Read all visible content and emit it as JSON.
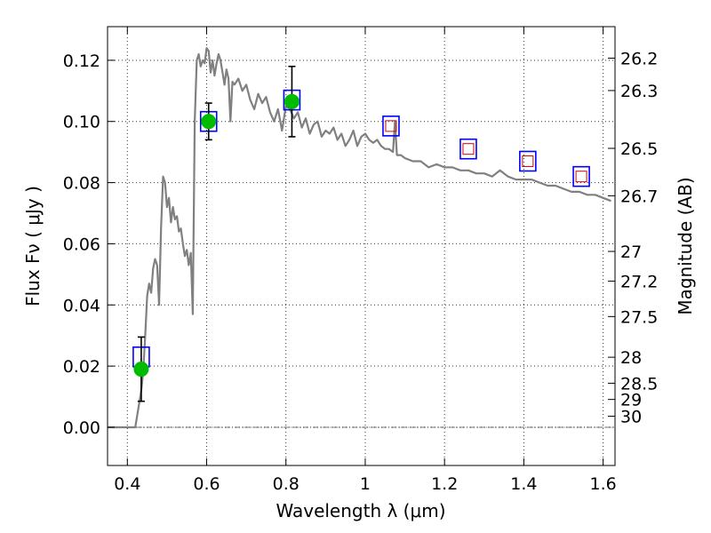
{
  "chart_data": {
    "type": "line",
    "xlabel": "Wavelength  λ (μm)",
    "ylabel": "Flux  Fν  ( μJy )",
    "y2label": "Magnitude (AB)",
    "xlim": [
      0.35,
      1.63
    ],
    "ylim": [
      -0.0125,
      0.131
    ],
    "x_ticks": [
      0.4,
      0.6,
      0.8,
      1.0,
      1.2,
      1.4,
      1.6
    ],
    "x_tick_labels": [
      "0.4",
      "0.6",
      "0.8",
      "1",
      "1.2",
      "1.4",
      "1.6"
    ],
    "y_ticks": [
      0.0,
      0.02,
      0.04,
      0.06,
      0.08,
      0.1,
      0.12
    ],
    "y_tick_labels": [
      "0.00",
      "0.02",
      "0.04",
      "0.06",
      "0.08",
      "0.10",
      "0.12"
    ],
    "y2_ticks": [
      {
        "flux": 0.1207,
        "label": "26.2"
      },
      {
        "flux": 0.1101,
        "label": "26.3"
      },
      {
        "flux": 0.0912,
        "label": "26.5"
      },
      {
        "flux": 0.0757,
        "label": "26.7"
      },
      {
        "flux": 0.0575,
        "label": "27"
      },
      {
        "flux": 0.0478,
        "label": "27.2"
      },
      {
        "flux": 0.0362,
        "label": "27.5"
      },
      {
        "flux": 0.0229,
        "label": "28"
      },
      {
        "flux": 0.0144,
        "label": "28.5"
      },
      {
        "flux": 0.0091,
        "label": "29"
      },
      {
        "flux": 0.0036,
        "label": "30"
      }
    ],
    "grid": true,
    "colors": {
      "model": "#808080",
      "observed": "#00bb00",
      "model_box": "#0000ff",
      "predicted": "#dd0000",
      "errorbar": "#000000"
    },
    "series": [
      {
        "type": "line",
        "x": [
          0.35,
          0.39,
          0.42,
          0.43,
          0.435,
          0.44,
          0.445,
          0.45,
          0.455,
          0.46,
          0.465,
          0.47,
          0.475,
          0.48,
          0.485,
          0.49,
          0.495,
          0.5,
          0.505,
          0.51,
          0.515,
          0.52,
          0.525,
          0.53,
          0.535,
          0.54,
          0.545,
          0.55,
          0.555,
          0.56,
          0.565,
          0.57,
          0.575,
          0.58,
          0.585,
          0.59,
          0.595,
          0.6,
          0.605,
          0.61,
          0.615,
          0.62,
          0.625,
          0.63,
          0.635,
          0.64,
          0.645,
          0.65,
          0.655,
          0.66,
          0.665,
          0.67,
          0.68,
          0.69,
          0.7,
          0.71,
          0.72,
          0.73,
          0.74,
          0.75,
          0.76,
          0.77,
          0.78,
          0.79,
          0.8,
          0.81,
          0.82,
          0.83,
          0.84,
          0.85,
          0.86,
          0.87,
          0.88,
          0.89,
          0.9,
          0.91,
          0.92,
          0.93,
          0.94,
          0.95,
          0.96,
          0.97,
          0.98,
          0.99,
          1.0,
          1.01,
          1.02,
          1.03,
          1.04,
          1.05,
          1.06,
          1.07,
          1.075,
          1.08,
          1.09,
          1.1,
          1.12,
          1.14,
          1.16,
          1.18,
          1.2,
          1.22,
          1.24,
          1.26,
          1.28,
          1.3,
          1.32,
          1.34,
          1.36,
          1.38,
          1.4,
          1.42,
          1.44,
          1.46,
          1.48,
          1.5,
          1.52,
          1.54,
          1.56,
          1.58,
          1.6,
          1.62
        ],
        "y": [
          0.0,
          0.0,
          0.0,
          0.008,
          0.012,
          0.018,
          0.03,
          0.043,
          0.047,
          0.044,
          0.052,
          0.055,
          0.053,
          0.04,
          0.065,
          0.082,
          0.08,
          0.072,
          0.075,
          0.067,
          0.072,
          0.068,
          0.069,
          0.064,
          0.065,
          0.06,
          0.056,
          0.058,
          0.053,
          0.057,
          0.037,
          0.1,
          0.12,
          0.122,
          0.118,
          0.12,
          0.119,
          0.124,
          0.123,
          0.116,
          0.12,
          0.115,
          0.119,
          0.122,
          0.12,
          0.116,
          0.112,
          0.117,
          0.114,
          0.1,
          0.113,
          0.112,
          0.114,
          0.11,
          0.112,
          0.107,
          0.104,
          0.109,
          0.106,
          0.108,
          0.103,
          0.1,
          0.104,
          0.097,
          0.105,
          0.104,
          0.101,
          0.103,
          0.098,
          0.101,
          0.096,
          0.099,
          0.1,
          0.095,
          0.097,
          0.096,
          0.098,
          0.094,
          0.096,
          0.092,
          0.094,
          0.097,
          0.092,
          0.095,
          0.096,
          0.094,
          0.093,
          0.094,
          0.092,
          0.091,
          0.091,
          0.09,
          0.1,
          0.089,
          0.089,
          0.088,
          0.087,
          0.087,
          0.085,
          0.086,
          0.085,
          0.085,
          0.084,
          0.084,
          0.083,
          0.083,
          0.082,
          0.084,
          0.082,
          0.081,
          0.081,
          0.081,
          0.08,
          0.079,
          0.079,
          0.078,
          0.077,
          0.077,
          0.076,
          0.076,
          0.075,
          0.074
        ]
      },
      {
        "type": "scatter",
        "marker": "circle",
        "x": [
          0.435,
          0.605,
          0.815
        ],
        "y": [
          0.019,
          0.1,
          0.1065
        ],
        "yerr": [
          0.0105,
          0.006,
          0.0115
        ]
      },
      {
        "type": "scatter",
        "marker": "square",
        "x": [
          0.435,
          0.605,
          0.815,
          1.065,
          1.26,
          1.41,
          1.545
        ],
        "y": [
          0.023,
          0.1,
          0.107,
          0.0985,
          0.091,
          0.087,
          0.082
        ]
      },
      {
        "type": "scatter",
        "marker": "small-square",
        "x": [
          1.065,
          1.26,
          1.41,
          1.545
        ],
        "y": [
          0.0985,
          0.091,
          0.087,
          0.082
        ]
      }
    ]
  }
}
